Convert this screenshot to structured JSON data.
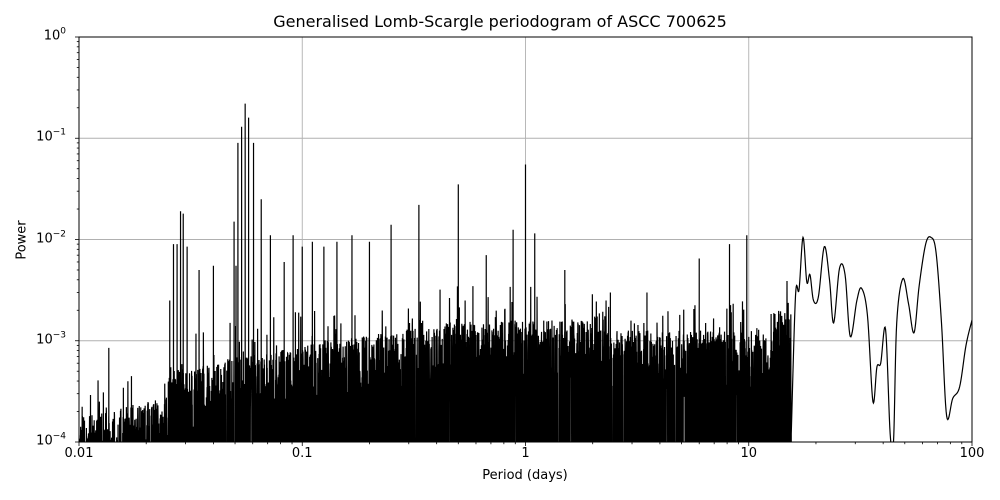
{
  "chart_data": {
    "type": "line",
    "title": "Generalised Lomb-Scargle periodogram of ASCC 700625",
    "xlabel": "Period (days)",
    "ylabel": "Power",
    "xscale": "log",
    "yscale": "log",
    "xlim": [
      0.01,
      100
    ],
    "ylim": [
      0.0001,
      1
    ],
    "grid": true,
    "legend": null,
    "x_ticks": [
      {
        "value": 0.01,
        "label": "0.01"
      },
      {
        "value": 0.1,
        "label": "0.1"
      },
      {
        "value": 1,
        "label": "1"
      },
      {
        "value": 10,
        "label": "10"
      },
      {
        "value": 100,
        "label": "100"
      }
    ],
    "y_ticks": [
      {
        "value": 1,
        "base": "10",
        "exp": "0"
      },
      {
        "value": 0.1,
        "base": "10",
        "exp": "−1"
      },
      {
        "value": 0.01,
        "base": "10",
        "exp": "−2"
      },
      {
        "value": 0.001,
        "base": "10",
        "exp": "−3"
      },
      {
        "value": 0.0001,
        "base": "10",
        "exp": "−4"
      }
    ],
    "line_color": "#000000",
    "grid_color": "#b0b0b0",
    "notable_peaks": [
      {
        "period": 0.0136,
        "power": 0.00085
      },
      {
        "period": 0.0255,
        "power": 0.0025
      },
      {
        "period": 0.0265,
        "power": 0.009
      },
      {
        "period": 0.0275,
        "power": 0.009
      },
      {
        "period": 0.0285,
        "power": 0.019
      },
      {
        "period": 0.0293,
        "power": 0.018
      },
      {
        "period": 0.0305,
        "power": 0.0085
      },
      {
        "period": 0.0345,
        "power": 0.005
      },
      {
        "period": 0.04,
        "power": 0.0055
      },
      {
        "period": 0.0475,
        "power": 0.0015
      },
      {
        "period": 0.0495,
        "power": 0.015
      },
      {
        "period": 0.0505,
        "power": 0.0055
      },
      {
        "period": 0.0515,
        "power": 0.09
      },
      {
        "period": 0.0535,
        "power": 0.13
      },
      {
        "period": 0.0555,
        "power": 0.22
      },
      {
        "period": 0.0575,
        "power": 0.16
      },
      {
        "period": 0.0605,
        "power": 0.09
      },
      {
        "period": 0.0655,
        "power": 0.025
      },
      {
        "period": 0.072,
        "power": 0.011
      },
      {
        "period": 0.083,
        "power": 0.006
      },
      {
        "period": 0.091,
        "power": 0.011
      },
      {
        "period": 0.1,
        "power": 0.0085
      },
      {
        "period": 0.111,
        "power": 0.0095
      },
      {
        "period": 0.125,
        "power": 0.0085
      },
      {
        "period": 0.143,
        "power": 0.0095
      },
      {
        "period": 0.167,
        "power": 0.011
      },
      {
        "period": 0.2,
        "power": 0.0095
      },
      {
        "period": 0.25,
        "power": 0.014
      },
      {
        "period": 0.333,
        "power": 0.022
      },
      {
        "period": 0.5,
        "power": 0.035
      },
      {
        "period": 0.667,
        "power": 0.007
      },
      {
        "period": 0.88,
        "power": 0.0125
      },
      {
        "period": 1.0,
        "power": 0.055
      },
      {
        "period": 1.1,
        "power": 0.0115
      },
      {
        "period": 1.5,
        "power": 0.005
      },
      {
        "period": 2.4,
        "power": 0.003
      },
      {
        "period": 3.5,
        "power": 0.003
      },
      {
        "period": 6.0,
        "power": 0.0065
      },
      {
        "period": 8.2,
        "power": 0.009
      },
      {
        "period": 9.8,
        "power": 0.011
      },
      {
        "period": 17.5,
        "power": 0.011
      },
      {
        "period": 19.0,
        "power": 0.0045
      },
      {
        "period": 22.0,
        "power": 0.0085
      },
      {
        "period": 26.0,
        "power": 0.005
      },
      {
        "period": 32.0,
        "power": 0.0032
      },
      {
        "period": 36.0,
        "power": 0.00025
      },
      {
        "period": 40.0,
        "power": 0.0013
      },
      {
        "period": 44.0,
        "power": 0.0001
      },
      {
        "period": 48.0,
        "power": 0.004
      },
      {
        "period": 55.0,
        "power": 0.0012
      },
      {
        "period": 65.0,
        "power": 0.0105
      },
      {
        "period": 78.0,
        "power": 0.00018
      },
      {
        "period": 100.0,
        "power": 0.0016
      }
    ],
    "smooth_tail": [
      [
        15.5,
        0.00012
      ],
      [
        16.2,
        0.0028
      ],
      [
        16.8,
        0.0032
      ],
      [
        17.5,
        0.0105
      ],
      [
        18.2,
        0.0038
      ],
      [
        18.8,
        0.0045
      ],
      [
        19.5,
        0.0025
      ],
      [
        20.5,
        0.0027
      ],
      [
        21.8,
        0.0085
      ],
      [
        23.0,
        0.004
      ],
      [
        24.0,
        0.0015
      ],
      [
        25.5,
        0.0052
      ],
      [
        27.0,
        0.0045
      ],
      [
        28.5,
        0.0011
      ],
      [
        30.5,
        0.0025
      ],
      [
        32.0,
        0.0033
      ],
      [
        34.0,
        0.0018
      ],
      [
        36.0,
        0.00025
      ],
      [
        37.5,
        0.00055
      ],
      [
        39.0,
        0.0006
      ],
      [
        41.0,
        0.0013
      ],
      [
        43.0,
        0.00012
      ],
      [
        44.5,
        0.0001
      ],
      [
        46.0,
        0.0015
      ],
      [
        49.0,
        0.0041
      ],
      [
        52.0,
        0.0023
      ],
      [
        55.0,
        0.0012
      ],
      [
        58.0,
        0.0035
      ],
      [
        62.0,
        0.009
      ],
      [
        65.5,
        0.0105
      ],
      [
        69.0,
        0.0075
      ],
      [
        73.0,
        0.0015
      ],
      [
        77.0,
        0.00018
      ],
      [
        82.0,
        0.00027
      ],
      [
        88.0,
        0.00035
      ],
      [
        94.0,
        0.0009
      ],
      [
        100.0,
        0.0016
      ]
    ]
  }
}
